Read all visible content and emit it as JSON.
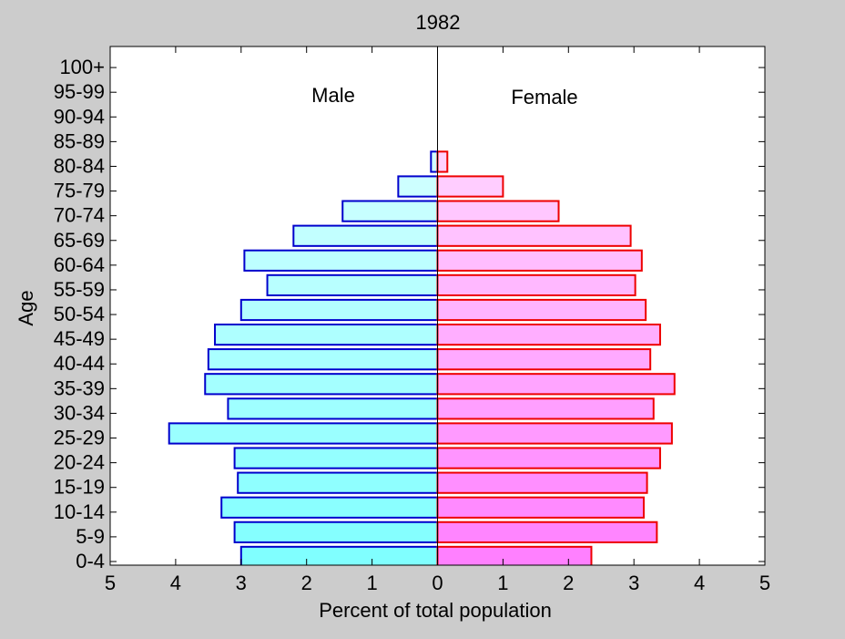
{
  "chart_data": {
    "type": "bar",
    "orientation": "horizontal",
    "title": "1982",
    "xlabel": "Percent of total population",
    "ylabel": "Age",
    "xlim": [
      -5,
      5
    ],
    "x_ticks": [
      -5,
      -4,
      -3,
      -2,
      -1,
      0,
      1,
      2,
      3,
      4,
      5
    ],
    "x_tick_labels": [
      "5",
      "4",
      "3",
      "2",
      "1",
      "0",
      "1",
      "2",
      "3",
      "4",
      "5"
    ],
    "categories": [
      "0-4",
      "5-9 ",
      "10-14",
      "15-19",
      "20-24",
      "25-29",
      "30-34",
      "35-39",
      "40-44",
      "45-49",
      "50-54",
      "55-59",
      "60-64",
      "65-69",
      "70-74",
      "75-79",
      "80-84",
      "85-89",
      "90-94",
      "95-99",
      "100+"
    ],
    "series": [
      {
        "name": "Male",
        "values": [
          3.0,
          3.1,
          3.3,
          3.05,
          3.1,
          4.1,
          3.2,
          3.55,
          3.5,
          3.4,
          3.0,
          2.6,
          2.95,
          2.2,
          1.45,
          0.6,
          0.1,
          0,
          0,
          0,
          0
        ],
        "edge_color": "#0000cc",
        "fill_from": "#80ffff",
        "fill_to": "#e6ffff"
      },
      {
        "name": "Female",
        "values": [
          2.35,
          3.35,
          3.15,
          3.2,
          3.4,
          3.58,
          3.3,
          3.62,
          3.25,
          3.4,
          3.18,
          3.02,
          3.12,
          2.95,
          1.85,
          1.0,
          0.15,
          0,
          0,
          0,
          0
        ],
        "edge_color": "#ee0000",
        "fill_from": "#ff80ff",
        "fill_to": "#ffe6ff"
      }
    ],
    "center_line": true,
    "grid": false
  }
}
